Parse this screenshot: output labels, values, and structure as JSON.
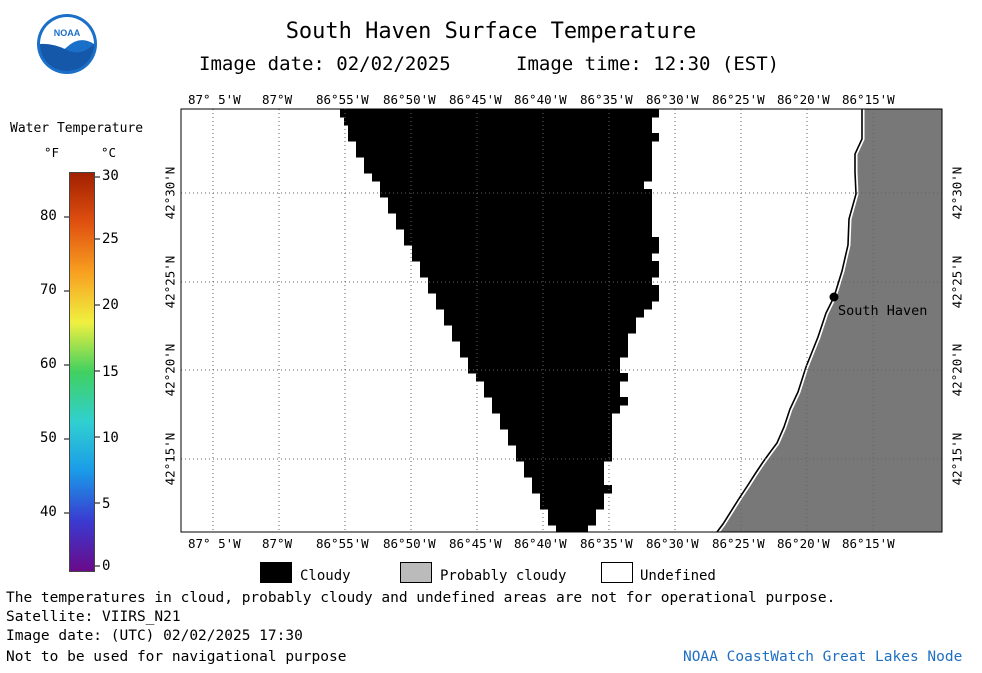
{
  "header": {
    "title": "South Haven Surface Temperature",
    "image_date": "Image date: 02/02/2025",
    "image_time": "Image time: 12:30 (EST)",
    "logo_text": "NOAA"
  },
  "colorbar": {
    "title": "Water Temperature",
    "unit_f": "°F",
    "unit_c": "°C",
    "f_ticks": [
      "40",
      "50",
      "60",
      "70",
      "80"
    ],
    "c_ticks": [
      "0",
      "5",
      "10",
      "15",
      "20",
      "25",
      "30"
    ],
    "colors": [
      "#6a0a8a",
      "#3a3ad0",
      "#1a9ae8",
      "#30d0d0",
      "#40d060",
      "#f0f040",
      "#f8a020",
      "#e05010",
      "#a02000"
    ]
  },
  "map": {
    "lon_labels_top": [
      "87° 5'W",
      "87°W",
      "86°55'W",
      "86°50'W",
      "86°45'W",
      "86°40'W",
      "86°35'W",
      "86°30'W",
      "86°25'W",
      "86°20'W",
      "86°15'W"
    ],
    "lon_labels_bottom": [
      "87° 5'W",
      "87°W",
      "86°55'W",
      "86°50'W",
      "86°45'W",
      "86°40'W",
      "86°35'W",
      "86°30'W",
      "86°25'W",
      "86°20'W",
      "86°15'W"
    ],
    "lat_labels": [
      "42°30'N",
      "42°25'N",
      "42°20'N",
      "42°15'N"
    ],
    "city_label": "South Haven",
    "colors": {
      "cloudy": "#000000",
      "land": "#787878",
      "probably_cloudy": "#bbbbbb",
      "undefined": "#ffffff"
    }
  },
  "legend": {
    "cloudy": "Cloudy",
    "probably_cloudy": "Probably cloudy",
    "undefined": "Undefined"
  },
  "footer": {
    "disclaimer": "The temperatures in cloud, probably cloudy and undefined areas are not for operational purpose.",
    "satellite": "Satellite: VIIRS_N21",
    "utc_date": "Image date: (UTC) 02/02/2025  17:30",
    "nav_note": "Not to be used for navigational purpose",
    "credit": "NOAA CoastWatch Great Lakes Node"
  }
}
